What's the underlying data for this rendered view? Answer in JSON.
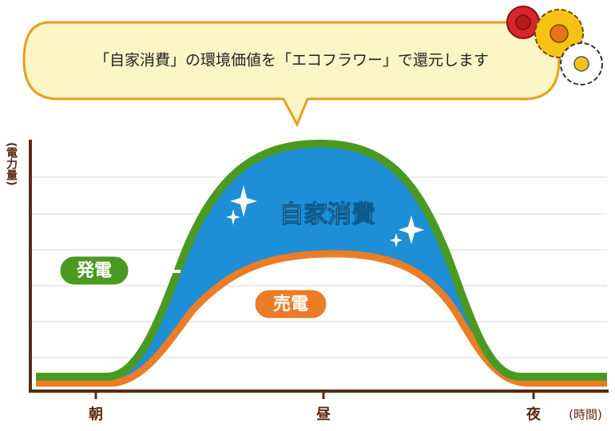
{
  "bubble": {
    "text": "「自家消費」の環境価値を「エコフラワー」で還元します"
  },
  "y_axis_label": "(電力量)",
  "x_labels": [
    "朝",
    "昼",
    "夜"
  ],
  "x_axis_label": "(時間)",
  "labels": {
    "generation": "発電",
    "sold": "売電",
    "self_consumption": "自家消費"
  }
}
